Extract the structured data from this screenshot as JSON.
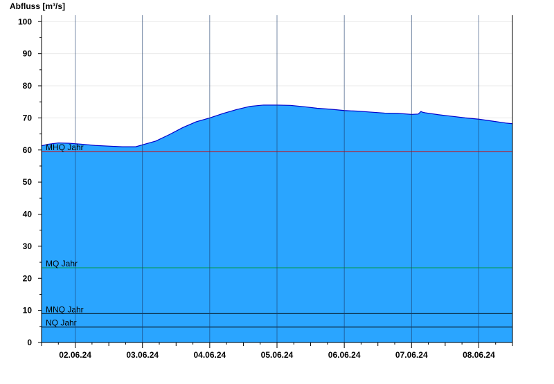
{
  "chart_data": {
    "type": "area",
    "title": "",
    "ylabel": "Abfluss [m³/s]",
    "xlabel": "",
    "ylim": [
      0,
      102
    ],
    "yticks": [
      0,
      10,
      20,
      30,
      40,
      50,
      60,
      70,
      80,
      90,
      100
    ],
    "xlim_days": [
      1.5,
      8.5
    ],
    "day_labels": [
      "02.06.24",
      "03.06.24",
      "04.06.24",
      "05.06.24",
      "06.06.24",
      "07.06.24",
      "08.06.24"
    ],
    "grid": true,
    "series": [
      {
        "color": "#2aa5ff",
        "x": [
          1.5,
          1.6,
          1.75,
          1.9,
          2.1,
          2.3,
          2.5,
          2.7,
          2.9,
          3.0,
          3.2,
          3.4,
          3.6,
          3.8,
          4.0,
          4.2,
          4.4,
          4.6,
          4.8,
          5.0,
          5.2,
          5.4,
          5.6,
          5.8,
          6.0,
          6.2,
          6.4,
          6.6,
          6.8,
          7.0,
          7.1,
          7.14,
          7.16,
          7.2,
          7.4,
          7.6,
          7.8,
          8.0,
          8.2,
          8.4,
          8.5
        ],
        "values": [
          61.3,
          61.8,
          62.2,
          62.1,
          61.8,
          61.4,
          61.2,
          61.0,
          61.0,
          61.6,
          62.8,
          64.8,
          67.0,
          68.8,
          70.0,
          71.4,
          72.6,
          73.6,
          74.0,
          74.0,
          73.9,
          73.5,
          73.0,
          72.7,
          72.3,
          72.1,
          71.8,
          71.5,
          71.4,
          71.1,
          71.2,
          72.0,
          71.8,
          71.6,
          71.0,
          70.5,
          70.0,
          69.6,
          69.0,
          68.4,
          68.2
        ]
      }
    ],
    "reference_lines": [
      {
        "label": "MHQ Jahr",
        "value": 59.5,
        "color": "#d40000"
      },
      {
        "label": "MQ Jahr",
        "value": 23.3,
        "color": "#009944"
      },
      {
        "label": "MNQ Jahr",
        "value": 9.0,
        "color": "#000000"
      },
      {
        "label": "NQ Jahr",
        "value": 4.8,
        "color": "#000000"
      }
    ]
  }
}
